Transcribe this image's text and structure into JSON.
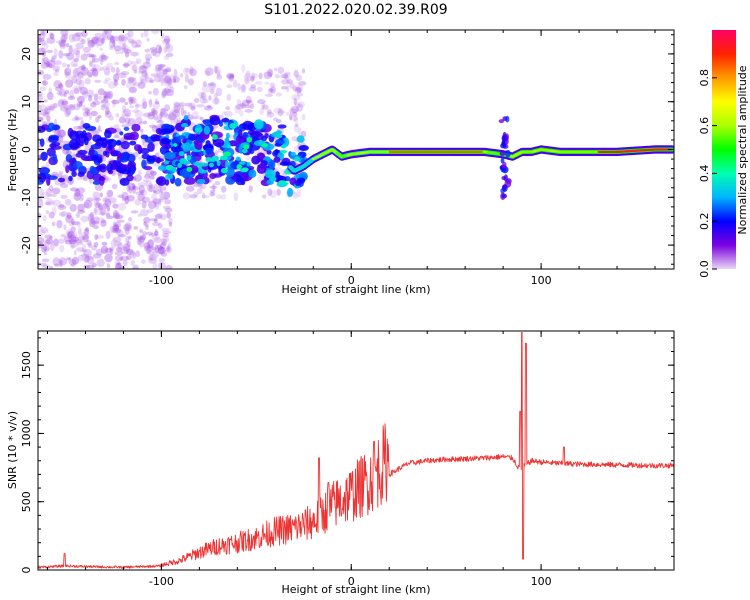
{
  "title": "S101.2022.020.02.39.R09",
  "chart_data": [
    {
      "type": "heatmap",
      "name": "spectrogram",
      "xlabel": "Height of straight line (km)",
      "ylabel": "Frequency (Hz)",
      "xlim": [
        -165,
        170
      ],
      "ylim": [
        -25,
        25
      ],
      "xticks": [
        -100,
        0,
        100
      ],
      "yticks": [
        -20,
        -10,
        0,
        10,
        20
      ],
      "colorbar": {
        "label": "Normalized spectral amplitude",
        "range": [
          0,
          1
        ],
        "ticks": [
          0.0,
          0.2,
          0.4,
          0.6,
          0.8
        ],
        "colormap": [
          "#e8d6f5",
          "#7b00e0",
          "#0000ff",
          "#00b4ff",
          "#00ffb0",
          "#00ff00",
          "#aaff00",
          "#ffff00",
          "#ff9900",
          "#ff2200",
          "#ff0066"
        ]
      },
      "ridge": {
        "x": [
          -100,
          -95,
          -90,
          -85,
          -80,
          -75,
          -70,
          -65,
          -60,
          -55,
          -50,
          -45,
          -40,
          -35,
          -30,
          -25,
          -20,
          -15,
          -10,
          -5,
          0,
          10,
          20,
          40,
          60,
          70,
          80,
          85,
          90,
          95,
          100,
          110,
          120,
          140,
          160,
          168
        ],
        "y": [
          -1.5,
          0,
          1.5,
          0.5,
          -1,
          0.5,
          1,
          0,
          1,
          0.5,
          0,
          -1,
          -1.5,
          -2.5,
          -4.5,
          -3.5,
          -2,
          -1,
          0,
          -1.5,
          -1,
          -0.5,
          -0.5,
          -0.5,
          -0.5,
          -0.5,
          -1,
          -1.5,
          -0.5,
          -0.5,
          0,
          -0.5,
          -0.5,
          -0.5,
          0,
          0
        ]
      }
    },
    {
      "type": "line",
      "name": "snr",
      "xlabel": "Height of straight line (km)",
      "ylabel": "SNR (10 * v/v)",
      "xlim": [
        -165,
        170
      ],
      "ylim": [
        0,
        1750
      ],
      "xticks": [
        -100,
        0,
        100
      ],
      "yticks": [
        0,
        500,
        1000,
        1500
      ],
      "color": "#ee3333",
      "envelope": {
        "x": [
          -165,
          -150,
          -140,
          -120,
          -100,
          -90,
          -80,
          -70,
          -60,
          -50,
          -40,
          -30,
          -20,
          -10,
          0,
          10,
          20,
          30,
          40,
          50,
          60,
          70,
          80,
          85,
          88,
          90,
          92,
          95,
          100,
          110,
          120,
          140,
          160,
          170
        ],
        "y": [
          20,
          30,
          25,
          20,
          30,
          60,
          110,
          150,
          170,
          200,
          240,
          260,
          300,
          400,
          470,
          560,
          700,
          780,
          800,
          810,
          815,
          820,
          830,
          820,
          750,
          750,
          770,
          800,
          790,
          780,
          775,
          770,
          765,
          765
        ]
      },
      "spikes": [
        {
          "x": -151,
          "y": 120
        },
        {
          "x": -17,
          "y": 820
        },
        {
          "x": -12,
          "y": 640
        },
        {
          "x": 12,
          "y": 940
        },
        {
          "x": 89,
          "y": 1160
        },
        {
          "x": 90,
          "y": 1740
        },
        {
          "x": 92,
          "y": 1660
        },
        {
          "x": 90.5,
          "y": 80
        },
        {
          "x": 112,
          "y": 900
        }
      ]
    }
  ]
}
